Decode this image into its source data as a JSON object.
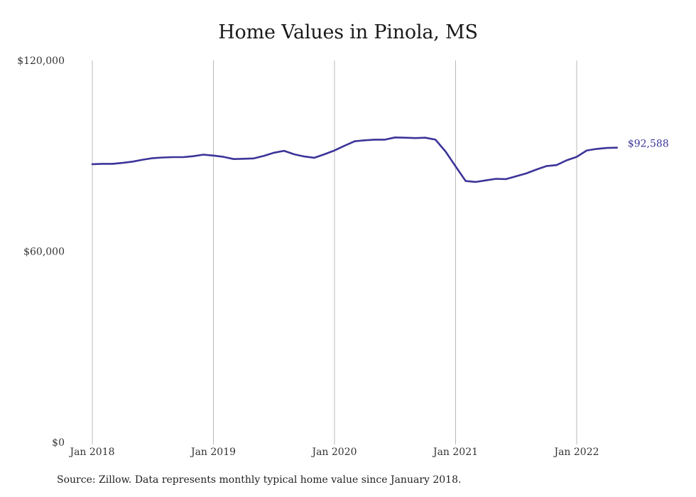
{
  "chart_data": {
    "type": "line",
    "title": "Home Values in Pinola, MS",
    "xlabel": "",
    "ylabel": "",
    "ylim": [
      0,
      120000
    ],
    "y_ticks": [
      {
        "value": 0,
        "label": "$0"
      },
      {
        "value": 60000,
        "label": "$60,000"
      },
      {
        "value": 120000,
        "label": "$120,000"
      }
    ],
    "x_ticks": [
      {
        "value": "2018-01",
        "label": "Jan 2018"
      },
      {
        "value": "2019-01",
        "label": "Jan 2019"
      },
      {
        "value": "2020-01",
        "label": "Jan 2020"
      },
      {
        "value": "2021-01",
        "label": "Jan 2021"
      },
      {
        "value": "2022-01",
        "label": "Jan 2022"
      }
    ],
    "grid": "vertical at x ticks",
    "line_color": "#3c3499",
    "series": [
      {
        "x": [
          "2018-01",
          "2018-02",
          "2018-03",
          "2018-04",
          "2018-05",
          "2018-06",
          "2018-07",
          "2018-08",
          "2018-09",
          "2018-10",
          "2018-11",
          "2018-12",
          "2019-01",
          "2019-02",
          "2019-03",
          "2019-04",
          "2019-05",
          "2019-06",
          "2019-07",
          "2019-08",
          "2019-09",
          "2019-10",
          "2019-11",
          "2019-12",
          "2020-01",
          "2020-02",
          "2020-03",
          "2020-04",
          "2020-05",
          "2020-06",
          "2020-07",
          "2020-08",
          "2020-09",
          "2020-10",
          "2020-11",
          "2020-12",
          "2021-01",
          "2021-02",
          "2021-03",
          "2021-04",
          "2021-05",
          "2021-06",
          "2021-07",
          "2021-08",
          "2021-09",
          "2021-10",
          "2021-11",
          "2021-12",
          "2022-01",
          "2022-02",
          "2022-03",
          "2022-04",
          "2022-05"
        ],
        "values": [
          87400,
          87500,
          87500,
          87800,
          88200,
          88800,
          89300,
          89500,
          89600,
          89600,
          89900,
          90400,
          90100,
          89700,
          89000,
          89100,
          89200,
          90000,
          91000,
          91600,
          90500,
          89800,
          89400,
          90500,
          91700,
          93200,
          94600,
          94900,
          95100,
          95100,
          95800,
          95700,
          95600,
          95700,
          95100,
          91400,
          86700,
          82100,
          81800,
          82300,
          82800,
          82700,
          83600,
          84500,
          85700,
          86800,
          87100,
          88600,
          89700,
          91700,
          92200,
          92500,
          92588
        ]
      }
    ],
    "end_label": "$92,588",
    "source_note": "Source: Zillow. Data represents monthly typical home value since January 2018."
  }
}
